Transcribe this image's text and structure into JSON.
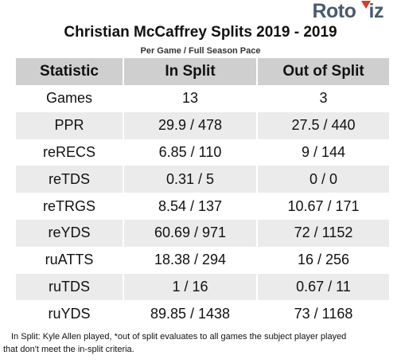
{
  "logo": {
    "part1": "Roto",
    "part2": "iz"
  },
  "title": "Christian McCaffrey Splits 2019 - 2019",
  "subtitle": "Per Game / Full Season Pace",
  "table": {
    "headers": [
      "Statistic",
      "In Split",
      "Out of Split"
    ],
    "rows": [
      [
        "Games",
        "13",
        "3"
      ],
      [
        "PPR",
        "29.9 / 478",
        "27.5 / 440"
      ],
      [
        "reRECS",
        "6.85 / 110",
        "9 / 144"
      ],
      [
        "reTDS",
        "0.31 / 5",
        "0 / 0"
      ],
      [
        "reTRGS",
        "8.54 / 137",
        "10.67 / 171"
      ],
      [
        "reYDS",
        "60.69 / 971",
        "72 / 1152"
      ],
      [
        "ruATTS",
        "18.38 / 294",
        "16 / 256"
      ],
      [
        "ruTDS",
        "1 / 16",
        "0.67 / 11"
      ],
      [
        "ruYDS",
        "89.85 / 1438",
        "73 / 1168"
      ]
    ]
  },
  "footnote": {
    "line1": "In Split: Kyle Allen played,  *out of split evaluates to all games the subject player played",
    "line2": "that don't meet the in-split criteria."
  },
  "colors": {
    "header_bg": "#cfcfcf",
    "row_alt_bg": "#ebebeb",
    "logo_text": "#4a5b6e",
    "logo_accent": "#d63a2b"
  }
}
